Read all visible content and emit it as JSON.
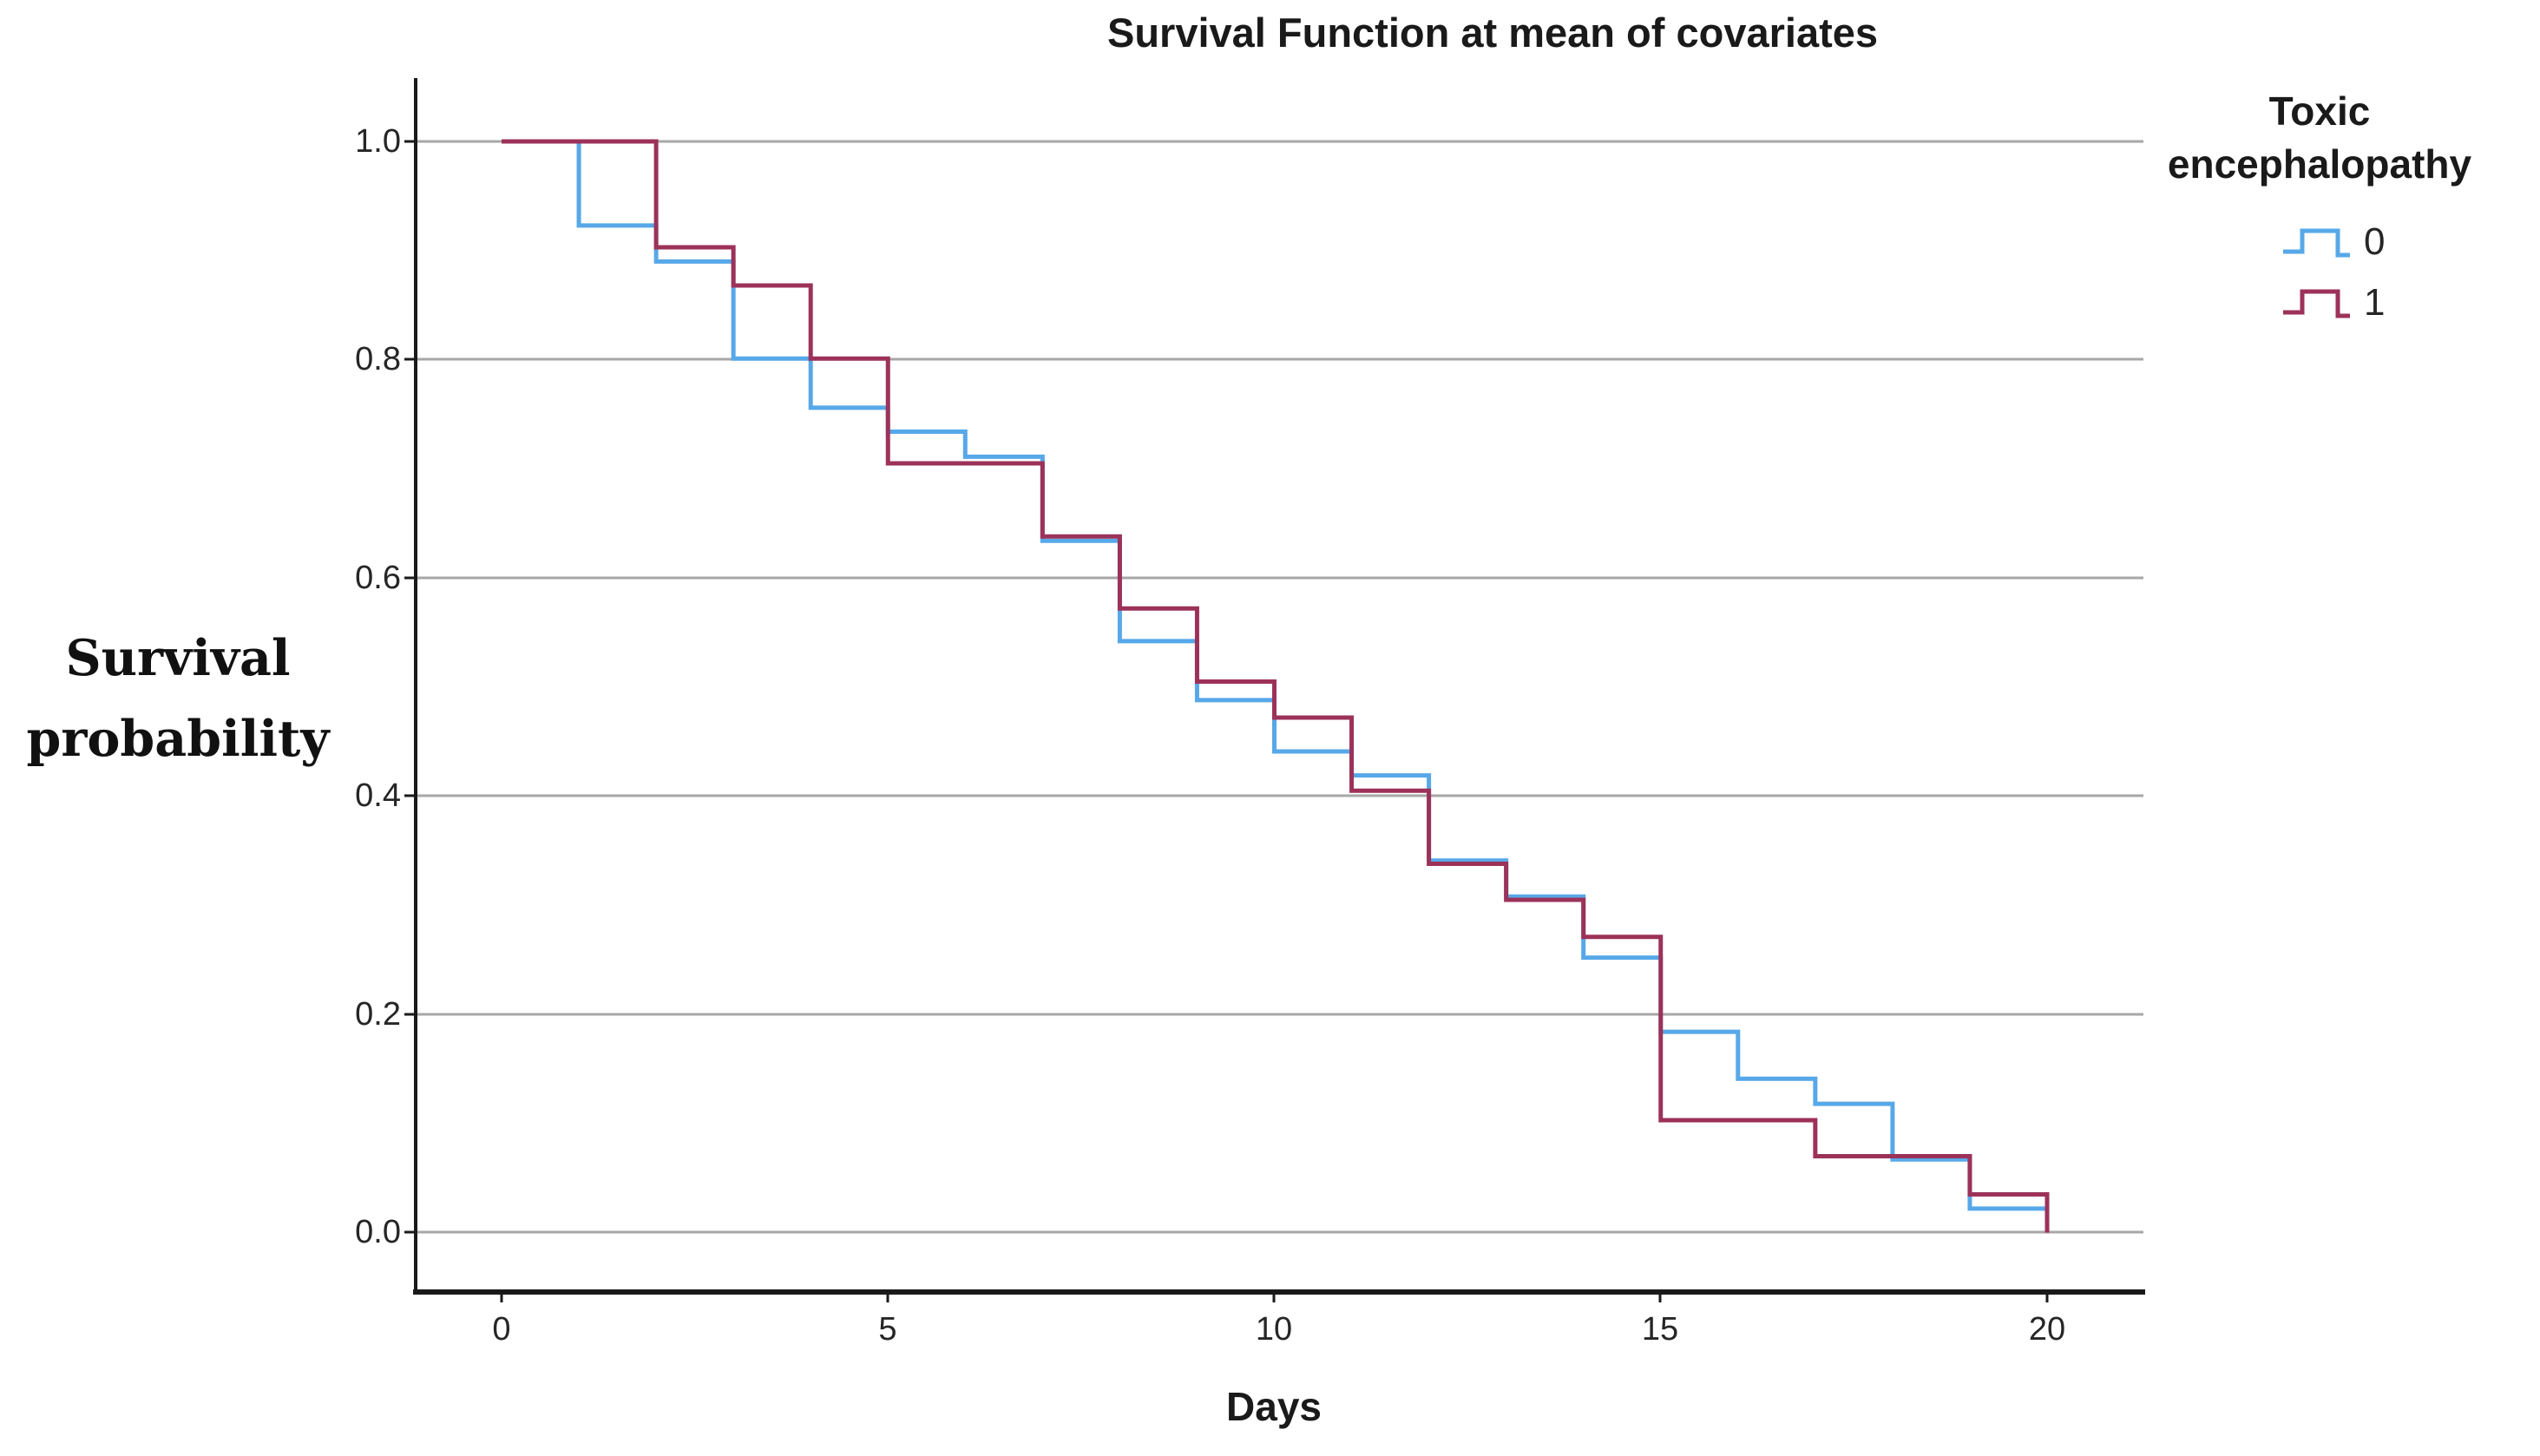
{
  "chart_data": {
    "type": "line",
    "subtype": "step-survival",
    "title": "Survival Function at mean of covariates",
    "xlabel": "Days",
    "ylabel": "Survival probability",
    "ylabel_lines": [
      "Survival",
      "probability"
    ],
    "legend_title": "Toxic encephalopathy",
    "legend_position": "right",
    "grid": true,
    "xlim": [
      0,
      20
    ],
    "ylim": [
      0.0,
      1.0
    ],
    "x_ticks": [
      "0",
      "5",
      "10",
      "15",
      "20"
    ],
    "y_ticks": [
      "1.0",
      "0.8",
      "0.6",
      "0.4",
      "0.2",
      "0.0"
    ],
    "colors": {
      "group0": "#57A8E8",
      "group1": "#9C3259",
      "gridline": "#A7A7A7",
      "axis": "#1A1A1A"
    },
    "series": [
      {
        "name": "0",
        "color": "#57A8E8",
        "extend_to": 20,
        "points": [
          [
            0,
            1.0
          ],
          [
            1,
            0.923
          ],
          [
            2,
            0.89
          ],
          [
            3,
            0.801
          ],
          [
            4,
            0.756
          ],
          [
            5,
            0.734
          ],
          [
            6,
            0.711
          ],
          [
            7,
            0.634
          ],
          [
            8,
            0.542
          ],
          [
            9,
            0.488
          ],
          [
            10,
            0.441
          ],
          [
            11,
            0.419
          ],
          [
            12,
            0.341
          ],
          [
            13,
            0.308
          ],
          [
            14,
            0.252
          ],
          [
            15,
            0.184
          ],
          [
            16,
            0.141
          ],
          [
            17,
            0.118
          ],
          [
            18,
            0.067
          ],
          [
            19,
            0.022
          ]
        ]
      },
      {
        "name": "1",
        "color": "#9C3259",
        "extend_to": null,
        "points": [
          [
            0,
            1.0
          ],
          [
            2,
            0.903
          ],
          [
            3,
            0.868
          ],
          [
            4,
            0.801
          ],
          [
            5,
            0.705
          ],
          [
            7,
            0.638
          ],
          [
            8,
            0.572
          ],
          [
            9,
            0.505
          ],
          [
            10,
            0.472
          ],
          [
            11,
            0.405
          ],
          [
            12,
            0.338
          ],
          [
            13,
            0.305
          ],
          [
            14,
            0.271
          ],
          [
            15,
            0.103
          ],
          [
            17,
            0.07
          ],
          [
            19,
            0.035
          ],
          [
            20,
            0.0
          ]
        ]
      }
    ]
  }
}
